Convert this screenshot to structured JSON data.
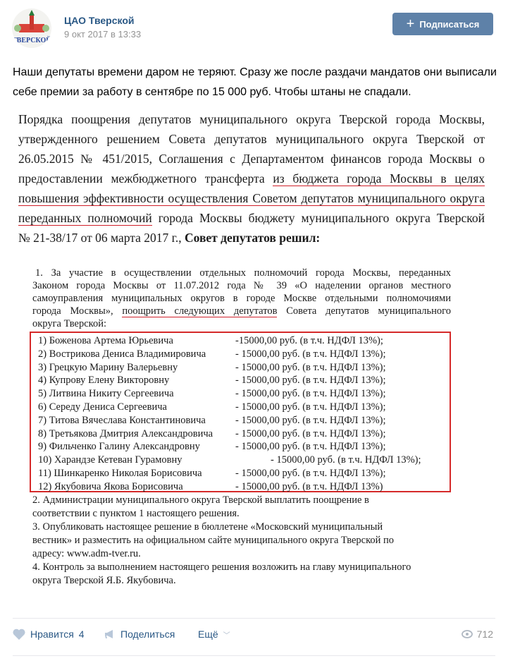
{
  "header": {
    "community_name": "ЦАО Тверской",
    "date": "9 окт 2017 в 13:33",
    "avatar_text": "ТВЕРСКОЙ",
    "subscribe_label": "Подписаться"
  },
  "post": {
    "text": "Наши депутаты времени даром не теряют. Сразу же после раздачи мандатов они выписали себе премии за работу в сентябре по 15 000 руб. Чтобы штаны не спадали."
  },
  "document": {
    "intro": [
      {
        "a": "Порядка поощрения депутатов муниципального округа  Тверской города Москвы,",
        "u": "",
        "b": ""
      },
      {
        "a": "утвержденного решением Совета депутатов муниципального округа Тверской от",
        "u": "",
        "b": ""
      },
      {
        "a": "26.05.2015 № 451/2015, Соглашения с Департаментом финансов города Москвы о",
        "u": "",
        "b": ""
      },
      {
        "a": "предоставлении межбюджетного трансферта ",
        "u": "из бюджета города Москвы в целях",
        "b": ""
      },
      {
        "a": "",
        "u": "повышения эффективности осуществления Советом депутатов муниципального округа",
        "b": ""
      },
      {
        "a": "",
        "u": "переданных полномочий",
        "b": " города Москвы бюджету муниципального округа Тверской"
      }
    ],
    "intro_last": "№ 21-38/17 от 06 марта 2017 г., ",
    "intro_bold": "Совет депутатов решил:",
    "item1": [
      "1. За участие в осуществлении отдельных полномочий города Москвы, переданных",
      "Законом города Москвы от 11.07.2012 года № 39 «О наделении органов местного",
      "самоуправления муниципальных округов в городе Москве отдельными полномочиями"
    ],
    "item1_l4a": "города Москвы», ",
    "item1_l4u": "поощрить следующих депутатов",
    "item1_l4b": " Совета депутатов муниципального",
    "item1_l5": "округа Тверской:",
    "deputies": [
      {
        "name": "1) Боженова Артема Юрьевича",
        "amount": "-15000,00 руб. (в т.ч. НДФЛ 13%);"
      },
      {
        "name": "2) Вострикова Дениса Владимировича",
        "amount": "- 15000,00 руб. (в т.ч. НДФЛ 13%);"
      },
      {
        "name": "3) Грецкую Марину Валерьевну",
        "amount": "- 15000,00 руб. (в т.ч. НДФЛ 13%);"
      },
      {
        "name": "4) Купрову Елену Викторовну",
        "amount": "- 15000,00 руб. (в т.ч. НДФЛ 13%);"
      },
      {
        "name": "5) Литвина Никиту Сергеевича",
        "amount": "- 15000,00 руб. (в т.ч. НДФЛ 13%);"
      },
      {
        "name": "6) Середу Дениса Сергеевича",
        "amount": "- 15000,00 руб. (в т.ч. НДФЛ 13%);"
      },
      {
        "name": "7) Титова Вячеслава Константиновича",
        "amount": "- 15000,00 руб. (в т.ч. НДФЛ 13%);"
      },
      {
        "name": "8) Третьякова Дмитрия Александровича",
        "amount": "- 15000,00 руб. (в т.ч. НДФЛ 13%);"
      },
      {
        "name": "9) Фильченко Галину Александровну",
        "amount": "- 15000,00 руб. (в т.ч. НДФЛ 13%);"
      },
      {
        "name": "10) Харандзе Кетеван Гурамовну",
        "amount": "- 15000,00 руб. (в т.ч. НДФЛ 13%);"
      },
      {
        "name": "11) Шинкаренко Николая Борисовича",
        "amount": "- 15000,00 руб. (в т.ч. НДФЛ 13%);"
      },
      {
        "name": "12) Якубовича Якова Борисовича",
        "amount": "- 15000,00 руб. (в т.ч. НДФЛ 13%)"
      }
    ],
    "rest": [
      "  2. Администрации муниципального округа Тверской выплатить поощрение в",
      "соответствии с пунктом 1 настоящего решения.",
      "3. Опубликовать настоящее решение в бюллетене «Московский муниципальный",
      "вестник» и разместить на официальном сайте муниципального округа Тверской  по",
      "адресу: www.adm-tver.ru.",
      "4. Контроль за выполнением настоящего решения возложить на главу муниципального",
      "округа Тверской Я.Б. Якубовича."
    ]
  },
  "actions": {
    "like_label": "Нравится",
    "like_count": "4",
    "share_label": "Поделиться",
    "more_label": "Ещё",
    "views": "712"
  },
  "colors": {
    "accent": "#5e81a8",
    "link": "#2a5885",
    "underline": "#d0202a"
  }
}
